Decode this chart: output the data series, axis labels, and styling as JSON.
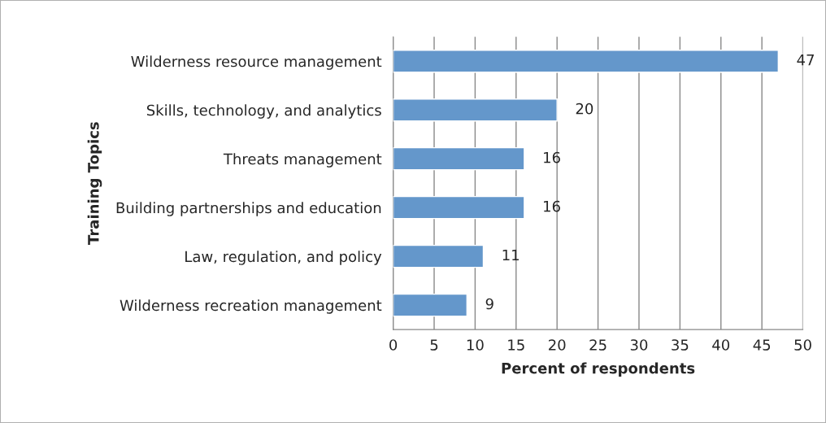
{
  "chart_data": {
    "type": "bar",
    "orientation": "horizontal",
    "categories": [
      "Wilderness resource management",
      "Skills, technology, and analytics",
      "Threats management",
      "Building partnerships and education",
      "Law, regulation, and policy",
      "Wilderness recreation management"
    ],
    "values": [
      47,
      20,
      16,
      16,
      11,
      9
    ],
    "color": "#6497cb",
    "xlabel": "Percent of respondents",
    "ylabel": "Training Topics",
    "xlim": [
      0,
      50
    ],
    "xticks": [
      0,
      5,
      10,
      15,
      20,
      25,
      30,
      35,
      40,
      45,
      50
    ],
    "grid": "x",
    "data_labels": true
  }
}
